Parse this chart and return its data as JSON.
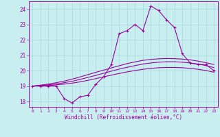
{
  "xlabel": "Windchill (Refroidissement éolien,°C)",
  "background_color": "#c8eef0",
  "grid_color": "#a8d8dc",
  "line_color": "#990099",
  "spine_color": "#990099",
  "xlim": [
    -0.5,
    23.5
  ],
  "ylim": [
    17.65,
    24.5
  ],
  "yticks": [
    18,
    19,
    20,
    21,
    22,
    23,
    24
  ],
  "xticks": [
    0,
    1,
    2,
    3,
    4,
    5,
    6,
    7,
    8,
    9,
    10,
    11,
    12,
    13,
    14,
    15,
    16,
    17,
    18,
    19,
    20,
    21,
    22,
    23
  ],
  "hours": [
    0,
    1,
    2,
    3,
    4,
    5,
    6,
    7,
    8,
    9,
    10,
    11,
    12,
    13,
    14,
    15,
    16,
    17,
    18,
    19,
    20,
    21,
    22,
    23
  ],
  "windchill": [
    19.0,
    19.0,
    19.0,
    19.0,
    18.2,
    17.9,
    18.3,
    18.4,
    19.1,
    19.6,
    20.4,
    22.4,
    22.6,
    23.0,
    22.6,
    24.2,
    23.9,
    23.3,
    22.8,
    21.1,
    20.5,
    20.4,
    20.4,
    20.0
  ],
  "smooth1": [
    19.0,
    19.06,
    19.13,
    19.22,
    19.32,
    19.45,
    19.59,
    19.74,
    19.89,
    20.03,
    20.18,
    20.32,
    20.46,
    20.57,
    20.67,
    20.73,
    20.77,
    20.79,
    20.78,
    20.75,
    20.7,
    20.62,
    20.52,
    20.4
  ],
  "smooth2": [
    19.0,
    19.04,
    19.08,
    19.14,
    19.22,
    19.31,
    19.43,
    19.56,
    19.69,
    19.83,
    19.97,
    20.1,
    20.22,
    20.33,
    20.43,
    20.5,
    20.55,
    20.58,
    20.58,
    20.55,
    20.5,
    20.43,
    20.33,
    20.2
  ],
  "smooth3": [
    19.0,
    19.02,
    19.04,
    19.08,
    19.13,
    19.19,
    19.27,
    19.37,
    19.48,
    19.6,
    19.71,
    19.82,
    19.92,
    20.01,
    20.09,
    20.15,
    20.19,
    20.21,
    20.21,
    20.19,
    20.15,
    20.09,
    20.01,
    19.9
  ]
}
